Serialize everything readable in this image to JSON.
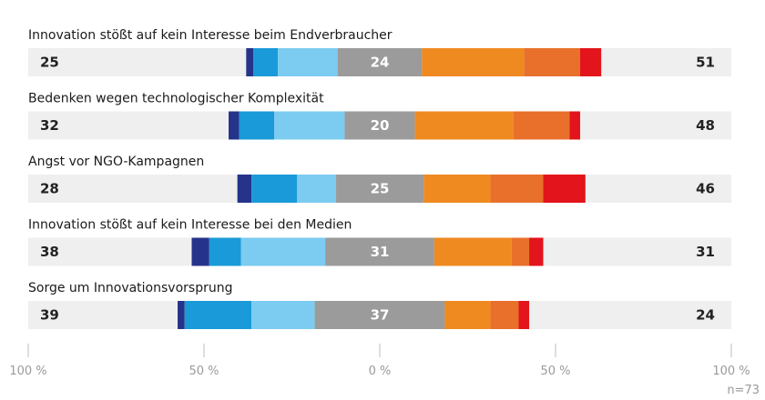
{
  "chart_data": {
    "type": "bar",
    "subtype": "diverging-stacked-horizontal",
    "note": "n=73",
    "x_ticks": [
      "100 %",
      "50 %",
      "0 %",
      "50 %",
      "100 %"
    ],
    "xlim": [
      -100,
      100
    ],
    "colors": {
      "background_track": "#efefef",
      "left": [
        "#25348a",
        "#1a9ad8",
        "#7ccbf0"
      ],
      "neutral": "#9b9b9b",
      "right": [
        "#ef8a21",
        "#e8702b",
        "#e3141b"
      ],
      "axis": "#bdbdbd"
    },
    "rows": [
      {
        "label": "Innovation stößt auf kein Interesse beim Endverbraucher",
        "left_total": "25",
        "neutral_label": "24",
        "right_total": "51",
        "left_segments": [
          2,
          7,
          17
        ],
        "neutral": 24,
        "right_segments": [
          29,
          16,
          6
        ]
      },
      {
        "label": "Bedenken wegen technologischer Komplexität",
        "left_total": "32",
        "neutral_label": "20",
        "right_total": "48",
        "left_segments": [
          3,
          10,
          20
        ],
        "neutral": 20,
        "right_segments": [
          28,
          16,
          3
        ]
      },
      {
        "label": "Angst vor NGO-Kampagnen",
        "left_total": "28",
        "neutral_label": "25",
        "right_total": "46",
        "left_segments": [
          4,
          13,
          11
        ],
        "neutral": 25,
        "right_segments": [
          19,
          15,
          12
        ]
      },
      {
        "label": "Innovation stößt auf kein Interesse bei den Medien",
        "left_total": "38",
        "neutral_label": "31",
        "right_total": "31",
        "left_segments": [
          5,
          9,
          24
        ],
        "neutral": 31,
        "right_segments": [
          22,
          5,
          4
        ]
      },
      {
        "label": "Sorge um Innovationsvorsprung",
        "left_total": "39",
        "neutral_label": "37",
        "right_total": "24",
        "left_segments": [
          2,
          19,
          18
        ],
        "neutral": 37,
        "right_segments": [
          13,
          8,
          3
        ]
      }
    ]
  }
}
